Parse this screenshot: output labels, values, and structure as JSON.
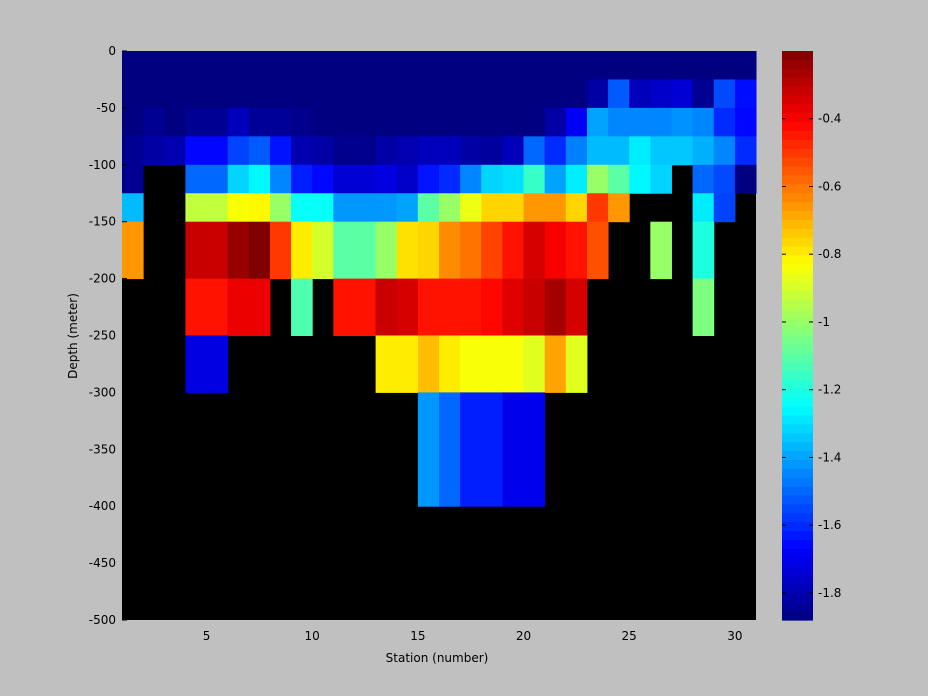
{
  "chart_data": {
    "type": "heatmap",
    "title": "",
    "xlabel": "Station (number)",
    "ylabel": "Depth (meter)",
    "xlim": [
      1,
      31
    ],
    "ylim": [
      -500,
      0
    ],
    "x_ticks": [
      5,
      10,
      15,
      20,
      25,
      30
    ],
    "y_ticks": [
      0,
      -50,
      -100,
      -150,
      -200,
      -250,
      -300,
      -350,
      -400,
      -450,
      -500
    ],
    "colorbar": {
      "colormap": "jet",
      "range": [
        -1.88,
        -0.2
      ],
      "ticks": [
        -0.4,
        -0.6,
        -0.8,
        -1,
        -1.2,
        -1.4,
        -1.6,
        -1.8
      ],
      "location": "right"
    },
    "missing_color": "#000000",
    "depth_bins": [
      0,
      -25,
      -50,
      -75,
      -100,
      -125,
      -150,
      -200,
      -250,
      -300,
      -400
    ],
    "values": [
      [
        -1.88,
        -1.88,
        -1.88,
        -1.88,
        -1.88,
        -1.88,
        -1.88,
        -1.88,
        -1.88,
        -1.88,
        -1.88,
        -1.88,
        -1.88,
        -1.88,
        -1.88,
        -1.88,
        -1.88,
        -1.88,
        -1.88,
        -1.88,
        -1.88,
        -1.88,
        -1.88,
        -1.88,
        -1.88,
        -1.88,
        -1.88,
        -1.88,
        -1.88,
        -1.88
      ],
      [
        -1.88,
        -1.88,
        -1.88,
        -1.88,
        -1.88,
        -1.88,
        -1.88,
        -1.88,
        -1.88,
        -1.88,
        -1.88,
        -1.88,
        -1.88,
        -1.88,
        -1.88,
        -1.88,
        -1.88,
        -1.88,
        -1.88,
        -1.88,
        -1.88,
        -1.88,
        -1.82,
        -1.52,
        -1.78,
        -1.76,
        -1.74,
        -1.85,
        -1.55,
        -1.65
      ],
      [
        -1.88,
        -1.85,
        -1.88,
        -1.85,
        -1.85,
        -1.78,
        -1.84,
        -1.84,
        -1.86,
        -1.88,
        -1.88,
        -1.88,
        -1.88,
        -1.88,
        -1.88,
        -1.88,
        -1.88,
        -1.88,
        -1.88,
        -1.88,
        -1.82,
        -1.68,
        -1.4,
        -1.45,
        -1.45,
        -1.45,
        -1.43,
        -1.45,
        -1.6,
        -1.66
      ],
      [
        -1.85,
        -1.82,
        -1.8,
        -1.66,
        -1.66,
        -1.56,
        -1.52,
        -1.64,
        -1.8,
        -1.82,
        -1.86,
        -1.86,
        -1.82,
        -1.8,
        -1.78,
        -1.78,
        -1.82,
        -1.83,
        -1.78,
        -1.5,
        -1.6,
        -1.46,
        -1.36,
        -1.36,
        -1.28,
        -1.34,
        -1.34,
        -1.38,
        -1.45,
        -1.6
      ],
      [
        -1.85,
        null,
        null,
        -1.5,
        -1.5,
        -1.32,
        -1.26,
        -1.45,
        -1.62,
        -1.66,
        -1.74,
        -1.74,
        -1.72,
        -1.76,
        -1.64,
        -1.6,
        -1.45,
        -1.32,
        -1.3,
        -1.16,
        -1.4,
        -1.28,
        -1.0,
        -1.1,
        -1.26,
        -1.32,
        null,
        -1.5,
        -1.55,
        -1.88
      ],
      [
        -1.36,
        null,
        null,
        -0.93,
        -0.93,
        -0.84,
        -0.82,
        -1.0,
        -1.24,
        -1.24,
        -1.42,
        -1.42,
        -1.42,
        -1.4,
        -1.1,
        -1.0,
        -0.86,
        -0.76,
        -0.76,
        -0.66,
        -0.66,
        -0.76,
        -0.5,
        -0.66,
        null,
        null,
        null,
        -1.28,
        -1.56,
        null
      ],
      [
        -0.66,
        null,
        null,
        -0.32,
        -0.32,
        -0.24,
        -0.2,
        -0.5,
        -0.8,
        -0.9,
        -1.1,
        -1.1,
        -1.0,
        -0.78,
        -0.76,
        -0.64,
        -0.6,
        -0.52,
        -0.44,
        -0.34,
        -0.4,
        -0.44,
        -0.54,
        null,
        null,
        -1.0,
        null,
        -1.2,
        null,
        null
      ],
      [
        null,
        null,
        null,
        -0.44,
        -0.44,
        -0.38,
        -0.38,
        null,
        -1.12,
        null,
        -0.44,
        -0.44,
        -0.32,
        -0.34,
        -0.44,
        -0.44,
        -0.44,
        -0.42,
        -0.36,
        -0.32,
        -0.26,
        -0.34,
        null,
        null,
        null,
        null,
        null,
        -1.04,
        null,
        null
      ],
      [
        null,
        null,
        null,
        -1.72,
        -1.72,
        null,
        null,
        null,
        null,
        null,
        null,
        null,
        -0.8,
        -0.8,
        -0.72,
        -0.8,
        -0.84,
        -0.84,
        -0.84,
        -0.88,
        -0.68,
        -0.88,
        null,
        null,
        null,
        null,
        null,
        null,
        null,
        null
      ],
      [
        null,
        null,
        null,
        null,
        null,
        null,
        null,
        null,
        null,
        null,
        null,
        null,
        null,
        null,
        -1.42,
        -1.5,
        -1.62,
        -1.62,
        -1.7,
        -1.7,
        null,
        null,
        null,
        null,
        null,
        null,
        null,
        null,
        null,
        null
      ]
    ]
  }
}
